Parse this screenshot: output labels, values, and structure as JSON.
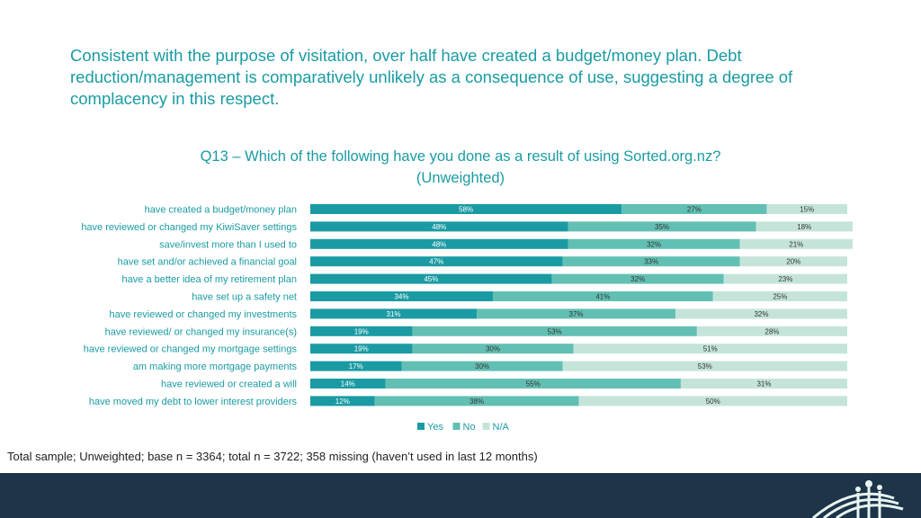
{
  "headline": "Consistent with the purpose of visitation, over half have created a budget/money plan. Debt reduction/management is comparatively unlikely as a consequence of use, suggesting a degree of complacency in this respect.",
  "chart_title_line1": "Q13 – Which of the following have you done as a result of using Sorted.org.nz?",
  "chart_title_line2": "(Unweighted)",
  "footnote": "Total sample; Unweighted; base n = 3364; total n = 3722; 358 missing (haven’t used in last 12 months)",
  "colors": {
    "yes": "#1a9ba3",
    "no": "#62bfb3",
    "na": "#c4e4da",
    "text": "#1a9ba3",
    "footer": "#1d3449"
  },
  "chart_data": {
    "type": "bar",
    "orientation": "horizontal",
    "stacked": "100%",
    "categories": [
      "have created a budget/money plan",
      "have reviewed or changed my KiwiSaver settings",
      "save/invest more than I used to",
      "have set and/or achieved a financial goal",
      "have a better idea of my retirement plan",
      "have set up a safety net",
      "have reviewed or changed my investments",
      "have reviewed/ or changed my insurance(s)",
      "have reviewed or changed my mortgage settings",
      "am making more mortgage payments",
      "have reviewed or created a will",
      "have moved my debt to lower interest providers"
    ],
    "series": [
      {
        "name": "Yes",
        "values": [
          58,
          48,
          48,
          47,
          45,
          34,
          31,
          19,
          19,
          17,
          14,
          12
        ]
      },
      {
        "name": "No",
        "values": [
          27,
          35,
          32,
          33,
          32,
          41,
          37,
          53,
          30,
          30,
          55,
          38
        ]
      },
      {
        "name": "N/A",
        "values": [
          15,
          18,
          21,
          20,
          23,
          25,
          32,
          28,
          51,
          53,
          31,
          50
        ]
      }
    ],
    "value_suffix": "%",
    "legend": "bottom-center"
  }
}
